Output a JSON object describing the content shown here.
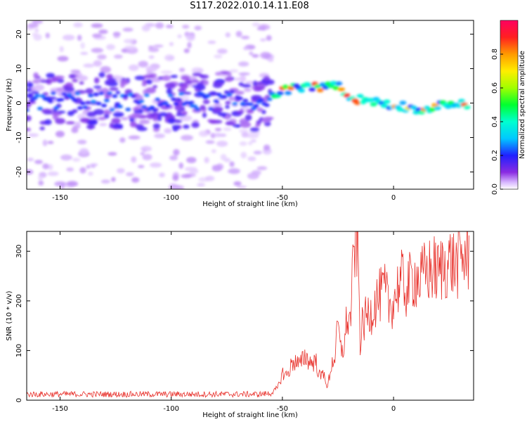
{
  "title": "S117.2022.010.14.11.E08",
  "chart_data": [
    {
      "type": "heatmap",
      "xlabel": "Height of straight line (km)",
      "ylabel": "Frequency (Hz)",
      "xlim": [
        -165,
        36
      ],
      "ylim": [
        -25,
        24
      ],
      "x_ticks": [
        -150,
        -100,
        -50,
        0
      ],
      "y_ticks": [
        -20,
        -10,
        0,
        10,
        20
      ],
      "colorbar": {
        "label": "Normalized spectral amplitude",
        "range": [
          0,
          1
        ],
        "ticks": [
          "0.0",
          "0.2",
          "0.4",
          "0.6",
          "0.8"
        ]
      },
      "ridge": {
        "x": [
          -165,
          -150,
          -130,
          -110,
          -90,
          -75,
          -62,
          -55,
          -48,
          -40,
          -30,
          -25,
          -20,
          -15,
          -10,
          -5,
          0,
          5,
          10,
          15,
          20,
          25,
          30,
          34
        ],
        "frequency_hz": [
          0,
          1,
          0.5,
          0,
          0.5,
          1,
          0,
          2.5,
          4,
          4.5,
          4.5,
          5,
          0.5,
          1,
          0.5,
          0,
          -0.5,
          -1,
          -2,
          -1.5,
          -0.5,
          -0.5,
          -0.5,
          -0.5
        ]
      }
    },
    {
      "type": "line",
      "xlabel": "Height of straight line (km)",
      "ylabel": "SNR (10 * v/v)",
      "xlim": [
        -165,
        36
      ],
      "ylim": [
        0,
        340
      ],
      "x_ticks": [
        -150,
        -100,
        -50,
        0
      ],
      "y_ticks": [
        0,
        100,
        200,
        300
      ],
      "series": [
        {
          "color": "#e8302a",
          "x": [
            -165,
            -150,
            -130,
            -110,
            -90,
            -70,
            -60,
            -55,
            -52,
            -50,
            -48,
            -45,
            -42,
            -40,
            -37,
            -35,
            -33,
            -31,
            -30,
            -28,
            -26,
            -25,
            -24,
            -22,
            -21,
            -20,
            -19,
            -18,
            -17,
            -16,
            -15,
            -14,
            -12,
            -10,
            -8,
            -6,
            -4,
            -2,
            0,
            2,
            4,
            6,
            8,
            10,
            12,
            14,
            16,
            18,
            20,
            22,
            24,
            26,
            28,
            30,
            32,
            34
          ],
          "values": [
            12,
            12,
            12,
            12,
            12,
            12,
            12,
            14,
            25,
            55,
            50,
            80,
            70,
            90,
            75,
            80,
            45,
            60,
            20,
            70,
            95,
            160,
            100,
            110,
            170,
            150,
            190,
            280,
            340,
            300,
            120,
            150,
            170,
            180,
            200,
            210,
            220,
            190,
            200,
            230,
            240,
            220,
            245,
            250,
            240,
            255,
            260,
            265,
            255,
            270,
            275,
            280,
            270,
            285,
            290,
            290
          ]
        }
      ]
    }
  ]
}
